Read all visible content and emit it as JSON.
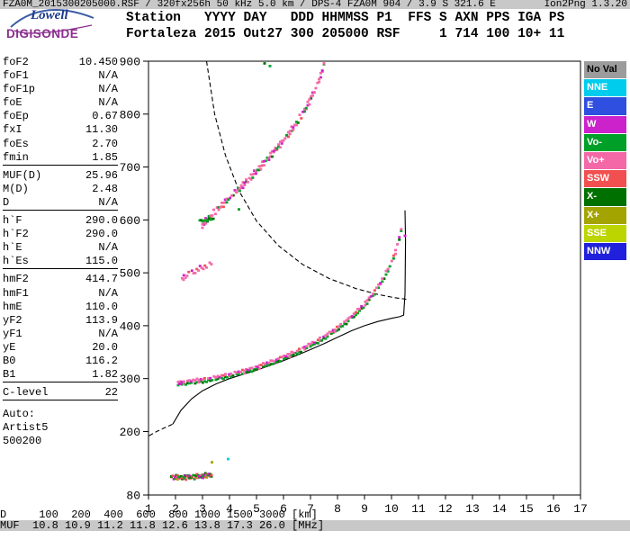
{
  "logo": {
    "line1": "Lowell",
    "line2": "DIGISONDE"
  },
  "header": {
    "line1": "Station   YYYY DAY   DDD HHMMSS P1  FFS S AXN PPS IGA PS",
    "line2": "Fortaleza 2015 Out27 300 205000 RSF     1 714 100 10+ 11"
  },
  "params": {
    "rows": [
      {
        "label": "foF2",
        "value": "10.450"
      },
      {
        "label": "foF1",
        "value": "N/A"
      },
      {
        "label": "foF1p",
        "value": "N/A"
      },
      {
        "label": "foE",
        "value": "N/A"
      },
      {
        "label": "foEp",
        "value": "0.67"
      },
      {
        "label": "fxI",
        "value": "11.30"
      },
      {
        "label": "foEs",
        "value": "2.70"
      },
      {
        "label": "fmin",
        "value": "1.85",
        "sep_after": true
      },
      {
        "label": "MUF(D)",
        "value": "25.96"
      },
      {
        "label": "M(D)",
        "value": "2.48"
      },
      {
        "label": "D",
        "value": "N/A",
        "sep_after": true
      },
      {
        "label": "h`F",
        "value": "290.0"
      },
      {
        "label": "h`F2",
        "value": "290.0"
      },
      {
        "label": "h`E",
        "value": "N/A"
      },
      {
        "label": "h`Es",
        "value": "115.0",
        "sep_after": true
      },
      {
        "label": "hmF2",
        "value": "414.7"
      },
      {
        "label": "hmF1",
        "value": "N/A"
      },
      {
        "label": "hmE",
        "value": "110.0"
      },
      {
        "label": "yF2",
        "value": "113.9"
      },
      {
        "label": "yF1",
        "value": "N/A"
      },
      {
        "label": "yE",
        "value": "20.0"
      },
      {
        "label": "B0",
        "value": "116.2"
      },
      {
        "label": "B1",
        "value": "1.82",
        "sep_after": true
      },
      {
        "label": "C-level",
        "value": "22",
        "sep_after": true
      },
      {
        "label": "Auto:",
        "value": "",
        "gap_before": true
      },
      {
        "label": "Artist5",
        "value": ""
      },
      {
        "label": "500200",
        "value": ""
      }
    ]
  },
  "legend": {
    "items": [
      {
        "label": "No Val",
        "color": "#9c9c9c",
        "text": "#000000"
      },
      {
        "label": "NNE",
        "color": "#00ccee",
        "text": "#ffffff"
      },
      {
        "label": "E",
        "color": "#2e4fe0",
        "text": "#ffffff"
      },
      {
        "label": "W",
        "color": "#cc22cc",
        "text": "#ffffff"
      },
      {
        "label": "Vo-",
        "color": "#00a028",
        "text": "#ffffff"
      },
      {
        "label": "Vo+",
        "color": "#f468a8",
        "text": "#ffffff"
      },
      {
        "label": "SSW",
        "color": "#f25050",
        "text": "#ffffff"
      },
      {
        "label": "X-",
        "color": "#007000",
        "text": "#ffffff"
      },
      {
        "label": "X+",
        "color": "#a4a400",
        "text": "#ffffff"
      },
      {
        "label": "SSE",
        "color": "#bcd400",
        "text": "#ffffff"
      },
      {
        "label": "NNW",
        "color": "#2020dd",
        "text": "#ffffff"
      }
    ]
  },
  "chart_data": {
    "type": "scatter",
    "title": "",
    "xlabel": "[MHz]",
    "ylabel": "[km]",
    "xlim": [
      1,
      17
    ],
    "ylim": [
      80,
      900
    ],
    "x_ticks": [
      1,
      2,
      3,
      4,
      5,
      6,
      7,
      8,
      9,
      10,
      11,
      12,
      13,
      14,
      15,
      16,
      17
    ],
    "y_ticks": [
      900,
      800,
      700,
      600,
      500,
      400,
      300,
      200,
      80
    ],
    "palette": {
      "no_val": "#9c9c9c",
      "nne": "#00ccee",
      "e": "#2e4fe0",
      "w": "#cc22cc",
      "vo_minus": "#00a028",
      "vo_plus": "#f468a8",
      "ssw": "#f25050",
      "x_minus": "#007000",
      "x_plus": "#a4a400",
      "sse": "#bcd400",
      "nnw": "#2020dd"
    },
    "traces": [
      {
        "name": "f-layer-main-trace",
        "step": 0.07,
        "jitter": 2,
        "anchors": [
          [
            2.1,
            291
          ],
          [
            2.5,
            293
          ],
          [
            3.0,
            296
          ],
          [
            3.5,
            300
          ],
          [
            4.0,
            306
          ],
          [
            4.5,
            312
          ],
          [
            5.0,
            320
          ],
          [
            5.5,
            329
          ],
          [
            6.0,
            339
          ],
          [
            6.5,
            350
          ],
          [
            7.0,
            363
          ],
          [
            7.5,
            377
          ],
          [
            8.0,
            394
          ],
          [
            8.5,
            414
          ],
          [
            9.0,
            439
          ],
          [
            9.3,
            457
          ],
          [
            9.6,
            480
          ],
          [
            9.9,
            508
          ],
          [
            10.1,
            531
          ],
          [
            10.25,
            556
          ],
          [
            10.35,
            578
          ],
          [
            10.42,
            597
          ]
        ],
        "rows": [
          {
            "dh": -2,
            "colors": [
              "vo_minus",
              "x_minus",
              "vo_minus",
              "vo_plus",
              "vo_minus",
              "x_minus",
              "vo_minus",
              "vo_minus"
            ]
          },
          {
            "dh": 3,
            "colors": [
              "vo_plus",
              "vo_plus",
              "w",
              "vo_plus",
              "ssw",
              "vo_plus",
              "vo_plus",
              "w",
              "vo_plus",
              "vo_plus"
            ]
          }
        ]
      },
      {
        "name": "second-hop-spread-trace",
        "step": 0.06,
        "jitter": 4,
        "anchors": [
          [
            3.0,
            590
          ],
          [
            3.4,
            612
          ],
          [
            3.9,
            636
          ],
          [
            4.4,
            660
          ],
          [
            4.9,
            686
          ],
          [
            5.4,
            714
          ],
          [
            5.9,
            744
          ],
          [
            6.4,
            776
          ],
          [
            6.8,
            808
          ],
          [
            7.1,
            838
          ],
          [
            7.35,
            866
          ],
          [
            7.5,
            893
          ]
        ],
        "rows": [
          {
            "dh": -2,
            "colors": [
              "vo_plus",
              "w",
              "vo_plus",
              "x_minus",
              "vo_plus",
              "ssw",
              "vo_plus",
              "vo_minus"
            ]
          },
          {
            "dh": 3,
            "colors": [
              "vo_plus",
              "vo_plus",
              "w",
              "vo_plus",
              "vo_minus",
              "vo_plus"
            ]
          }
        ]
      },
      {
        "name": "sporadic-e-trace",
        "step": 0.045,
        "jitter": 2.5,
        "anchors": [
          [
            1.85,
            112
          ],
          [
            2.2,
            111
          ],
          [
            2.6,
            112
          ],
          [
            3.0,
            114
          ],
          [
            3.35,
            116
          ]
        ],
        "rows": [
          {
            "dh": 0,
            "colors": [
              "ssw",
              "x_minus",
              "w",
              "vo_minus",
              "ssw",
              "x_plus",
              "vo_plus",
              "x_minus"
            ]
          },
          {
            "dh": 4,
            "colors": [
              "x_minus",
              "ssw",
              "vo_minus",
              "w"
            ]
          }
        ]
      },
      {
        "name": "spread-f-cluster-500km",
        "step": 0.06,
        "jitter": 6,
        "anchors": [
          [
            2.25,
            492
          ],
          [
            2.6,
            500
          ],
          [
            2.95,
            509
          ],
          [
            3.35,
            519
          ]
        ],
        "rows": [
          {
            "dh": 0,
            "colors": [
              "vo_plus",
              "w",
              "vo_plus",
              "vo_plus",
              "ssw"
            ]
          }
        ]
      },
      {
        "name": "cluster-600km",
        "step": 0.05,
        "jitter": 2,
        "anchors": [
          [
            2.9,
            598
          ],
          [
            3.15,
            600
          ],
          [
            3.4,
            602
          ]
        ],
        "rows": [
          {
            "dh": 0,
            "colors": [
              "vo_minus",
              "x_minus",
              "vo_minus"
            ]
          }
        ]
      }
    ],
    "points": [
      [
        5.3,
        896,
        "x_minus"
      ],
      [
        5.5,
        891,
        "vo_minus"
      ],
      [
        3.35,
        142,
        "x_plus"
      ],
      [
        3.95,
        148,
        "nne"
      ],
      [
        2.3,
        487,
        "vo_plus"
      ],
      [
        4.35,
        620,
        "vo_minus"
      ],
      [
        2.15,
        290,
        "w"
      ],
      [
        10.5,
        570,
        "w"
      ]
    ],
    "curves": [
      {
        "name": "true-height-profile",
        "style": "solid",
        "points": [
          [
            1.9,
            214
          ],
          [
            2.2,
            240
          ],
          [
            2.6,
            262
          ],
          [
            3.0,
            277
          ],
          [
            3.5,
            290
          ],
          [
            4.0,
            300
          ],
          [
            4.5,
            308
          ],
          [
            5.0,
            316
          ],
          [
            5.5,
            325
          ],
          [
            6.0,
            334
          ],
          [
            6.5,
            344
          ],
          [
            7.0,
            355
          ],
          [
            7.5,
            366
          ],
          [
            8.0,
            378
          ],
          [
            8.5,
            390
          ],
          [
            9.0,
            400
          ],
          [
            9.5,
            408
          ],
          [
            10.0,
            414
          ],
          [
            10.3,
            417
          ],
          [
            10.45,
            420
          ],
          [
            10.5,
            460
          ],
          [
            10.52,
            560
          ],
          [
            10.5,
            618
          ]
        ]
      },
      {
        "name": "profile-bottom-extension",
        "style": "dashed",
        "points": [
          [
            1.02,
            192
          ],
          [
            1.3,
            200
          ],
          [
            1.6,
            207
          ],
          [
            1.9,
            214
          ]
        ]
      },
      {
        "name": "muf-transmission-curve",
        "style": "dashed",
        "points": [
          [
            3.15,
            900
          ],
          [
            3.45,
            800
          ],
          [
            3.85,
            722
          ],
          [
            4.35,
            655
          ],
          [
            5.0,
            598
          ],
          [
            5.8,
            552
          ],
          [
            6.7,
            516
          ],
          [
            7.7,
            489
          ],
          [
            8.7,
            470
          ],
          [
            9.5,
            459
          ],
          [
            10.1,
            453
          ],
          [
            10.55,
            450
          ]
        ]
      }
    ]
  },
  "dist_table": {
    "rows": [
      {
        "label": "D",
        "values": [
          "100",
          "200",
          "400",
          "600",
          "800",
          "1000",
          "1500",
          "3000"
        ],
        "unit": "[km]"
      },
      {
        "label": "MUF",
        "values": [
          "10.8",
          "10.9",
          "11.2",
          "11.8",
          "12.6",
          "13.8",
          "17.3",
          "26.0"
        ],
        "unit": "[MHz]"
      }
    ]
  },
  "footer": {
    "file_info": "FZA0M_2015300205000.RSF / 320fx256h 50 kHz 5.0 km / DPS-4 FZA0M 904 / 3.9 S 321.6 E",
    "version": "Ion2Png 1.3.20"
  }
}
